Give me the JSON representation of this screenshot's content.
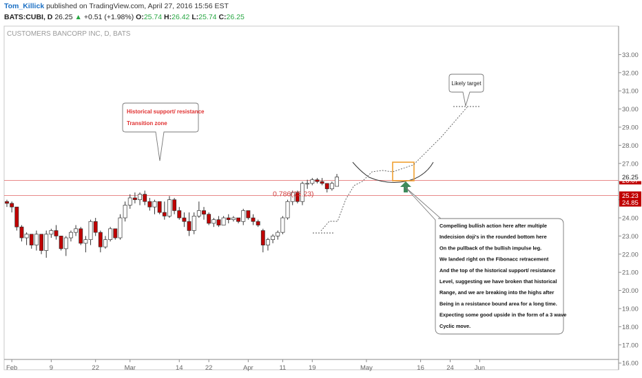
{
  "header": {
    "author": "Tom_Killick",
    "published": " published on TradingView.com, April 27, 2016 15:56 EST",
    "symbol": "BATS:CUBI, D",
    "last": "26.25",
    "change": "+0.51 (+1.98%)",
    "o_label": "O:",
    "o_value": "25.74",
    "h_label": "H:",
    "h_value": "26.42",
    "l_label": "L:",
    "l_value": "25.74",
    "c_label": "C:",
    "c_value": "26.25"
  },
  "chart_data": {
    "type": "candlestick",
    "title": "CUSTOMERS BANCORP INC, D, BATS",
    "ylim": [
      15,
      33.5
    ],
    "y_ticks": [
      "16.00",
      "17.00",
      "18.00",
      "19.00",
      "20.00",
      "21.00",
      "22.00",
      "23.00",
      "24.00",
      "25.00",
      "26.00",
      "27.00",
      "28.00",
      "29.00",
      "30.00",
      "31.00",
      "32.00",
      "33.00"
    ],
    "x_ticks": [
      {
        "label": "Feb",
        "x": 1
      },
      {
        "label": "9",
        "x": 9
      },
      {
        "label": "22",
        "x": 18
      },
      {
        "label": "Mar",
        "x": 25
      },
      {
        "label": "14",
        "x": 35
      },
      {
        "label": "22",
        "x": 41
      },
      {
        "label": "Apr",
        "x": 49
      },
      {
        "label": "11",
        "x": 56
      },
      {
        "label": "19",
        "x": 62
      },
      {
        "label": "May",
        "x": 73
      },
      {
        "label": "16",
        "x": 84
      },
      {
        "label": "24",
        "x": 90
      },
      {
        "label": "Jun",
        "x": 96
      }
    ],
    "candles": [
      [
        24.9,
        25.0,
        24.6,
        24.8
      ],
      [
        24.8,
        24.9,
        24.3,
        24.6
      ],
      [
        24.6,
        24.6,
        23.3,
        23.5
      ],
      [
        23.5,
        23.6,
        22.7,
        22.9
      ],
      [
        22.9,
        23.2,
        22.5,
        23.1
      ],
      [
        23.1,
        23.1,
        22.3,
        22.5
      ],
      [
        22.5,
        23.3,
        22.2,
        23.1
      ],
      [
        23.1,
        23.1,
        22.0,
        22.2
      ],
      [
        22.2,
        23.3,
        21.8,
        23.1
      ],
      [
        23.1,
        23.4,
        22.9,
        23.3
      ],
      [
        23.3,
        23.6,
        22.8,
        23.0
      ],
      [
        23.0,
        23.0,
        22.2,
        22.3
      ],
      [
        22.3,
        23.0,
        21.9,
        22.9
      ],
      [
        22.9,
        23.3,
        22.7,
        23.2
      ],
      [
        23.2,
        23.6,
        23.0,
        23.4
      ],
      [
        23.4,
        23.5,
        22.5,
        22.6
      ],
      [
        22.6,
        23.0,
        22.1,
        22.8
      ],
      [
        22.8,
        23.9,
        22.5,
        23.8
      ],
      [
        23.8,
        24.0,
        23.0,
        23.2
      ],
      [
        23.2,
        23.3,
        22.1,
        22.4
      ],
      [
        22.4,
        23.0,
        22.3,
        22.8
      ],
      [
        22.8,
        23.5,
        22.7,
        23.4
      ],
      [
        23.4,
        23.4,
        22.8,
        22.9
      ],
      [
        22.9,
        24.2,
        22.8,
        24.0
      ],
      [
        24.0,
        24.9,
        23.8,
        24.7
      ],
      [
        24.7,
        25.3,
        24.5,
        25.1
      ],
      [
        25.1,
        25.4,
        24.8,
        25.0
      ],
      [
        25.0,
        25.4,
        24.7,
        25.3
      ],
      [
        25.3,
        25.5,
        24.7,
        24.9
      ],
      [
        24.9,
        25.1,
        24.4,
        24.6
      ],
      [
        24.6,
        25.0,
        24.2,
        24.9
      ],
      [
        24.9,
        24.9,
        24.2,
        24.3
      ],
      [
        24.3,
        24.9,
        23.9,
        24.1
      ],
      [
        24.1,
        25.2,
        24.0,
        25.0
      ],
      [
        25.0,
        25.1,
        24.2,
        24.4
      ],
      [
        24.4,
        24.6,
        23.9,
        24.0
      ],
      [
        24.0,
        24.3,
        23.5,
        23.8
      ],
      [
        23.8,
        24.3,
        23.0,
        23.3
      ],
      [
        23.3,
        24.3,
        23.1,
        24.1
      ],
      [
        24.1,
        24.9,
        24.0,
        24.4
      ],
      [
        24.4,
        24.6,
        23.9,
        24.2
      ],
      [
        24.2,
        24.3,
        23.6,
        23.7
      ],
      [
        23.7,
        24.0,
        23.5,
        23.9
      ],
      [
        23.9,
        24.1,
        23.5,
        23.6
      ],
      [
        23.6,
        24.1,
        23.6,
        24.0
      ],
      [
        24.0,
        24.2,
        23.7,
        23.9
      ],
      [
        23.9,
        24.1,
        23.8,
        24.0
      ],
      [
        24.0,
        24.0,
        23.7,
        23.8
      ],
      [
        23.8,
        24.5,
        23.6,
        24.4
      ],
      [
        24.4,
        24.4,
        23.9,
        24.0
      ],
      [
        24.0,
        24.2,
        23.6,
        23.8
      ],
      [
        23.8,
        23.9,
        23.5,
        23.6
      ],
      [
        23.3,
        23.4,
        22.1,
        22.5
      ],
      [
        22.5,
        22.9,
        22.2,
        22.8
      ],
      [
        22.8,
        23.1,
        22.6,
        23.0
      ],
      [
        23.0,
        23.3,
        22.8,
        23.2
      ],
      [
        23.2,
        24.1,
        23.1,
        24.0
      ],
      [
        24.0,
        25.0,
        23.9,
        24.9
      ],
      [
        24.9,
        25.5,
        24.7,
        25.4
      ],
      [
        25.4,
        25.5,
        24.8,
        24.9
      ],
      [
        24.9,
        26.0,
        24.7,
        25.9
      ],
      [
        25.9,
        26.1,
        25.6,
        25.9
      ],
      [
        25.9,
        26.2,
        25.8,
        26.1
      ],
      [
        26.1,
        26.2,
        25.9,
        26.0
      ],
      [
        26.0,
        26.2,
        25.8,
        25.9
      ],
      [
        25.9,
        25.9,
        25.4,
        25.6
      ],
      [
        25.6,
        26.0,
        25.5,
        25.9
      ],
      [
        25.74,
        26.42,
        25.74,
        26.25
      ]
    ],
    "levels": [
      {
        "name": "resistance",
        "value": 26.07,
        "label": "26.07"
      },
      {
        "name": "fib",
        "value": 25.23,
        "label": "25.23"
      },
      {
        "name": "support-low",
        "value": 24.85,
        "label": "24.85"
      }
    ],
    "current_price": "26.25",
    "fib_label": "0.786(25.23)",
    "callouts": {
      "historical": [
        "Historical support/ resistance",
        "Transition zone"
      ],
      "target": "Likely target",
      "analysis": [
        "Compelling bullish action here after multiple",
        "Indecision doji's in the rounded bottom here",
        "On the pullback of the bullish impulse leg.",
        "We landed right on the Fibonacc retracement",
        "And the top of the historical support/ resistance",
        "Level, suggesting we have broken that historical",
        "Range, and we are breaking into the highs after",
        "Being in a resistance bound area for a long time.",
        "Expecting some good upside in the form of a 3 wave",
        "Cyclic move."
      ]
    },
    "colors": {
      "up": "#ffffff",
      "down": "#c00000",
      "axis": "#8a8a8a",
      "level": "#e06060",
      "arrow": "#3d8a5a",
      "box": "#f0a030"
    }
  }
}
